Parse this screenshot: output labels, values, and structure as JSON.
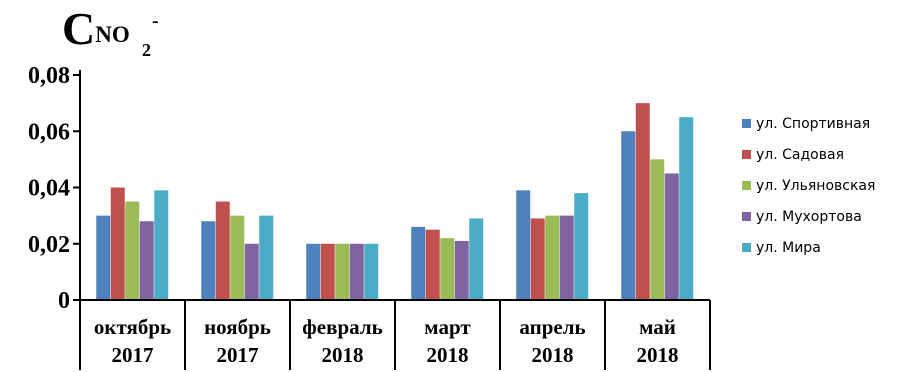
{
  "title": {
    "main": "C",
    "subscript": "NO",
    "subscript_index": "2",
    "superscript": "-"
  },
  "chart_data": {
    "type": "bar",
    "categories": [
      {
        "line1": "октябрь",
        "line2": "2017"
      },
      {
        "line1": "ноябрь",
        "line2": "2017"
      },
      {
        "line1": "февраль",
        "line2": "2018"
      },
      {
        "line1": "март",
        "line2": "2018"
      },
      {
        "line1": "апрель",
        "line2": "2018"
      },
      {
        "line1": "май",
        "line2": "2018"
      }
    ],
    "series": [
      {
        "name": "ул. Спортивная",
        "color": "#4F81BD",
        "values": [
          0.03,
          0.028,
          0.02,
          0.026,
          0.039,
          0.06
        ]
      },
      {
        "name": "ул. Садовая",
        "color": "#C0504D",
        "values": [
          0.04,
          0.035,
          0.02,
          0.025,
          0.029,
          0.07
        ]
      },
      {
        "name": "ул. Ульяновская",
        "color": "#9BBB59",
        "values": [
          0.035,
          0.03,
          0.02,
          0.022,
          0.03,
          0.05
        ]
      },
      {
        "name": "ул. Мухортова",
        "color": "#8064A2",
        "values": [
          0.028,
          0.02,
          0.02,
          0.021,
          0.03,
          0.045
        ]
      },
      {
        "name": "ул. Мира",
        "color": "#4BACC6",
        "values": [
          0.039,
          0.03,
          0.02,
          0.029,
          0.038,
          0.065
        ]
      }
    ],
    "yticks": [
      "0",
      "0,02",
      "0,04",
      "0,06",
      "0,08"
    ],
    "ylim": [
      0,
      0.08
    ],
    "grid": false,
    "legend_position": "right"
  }
}
